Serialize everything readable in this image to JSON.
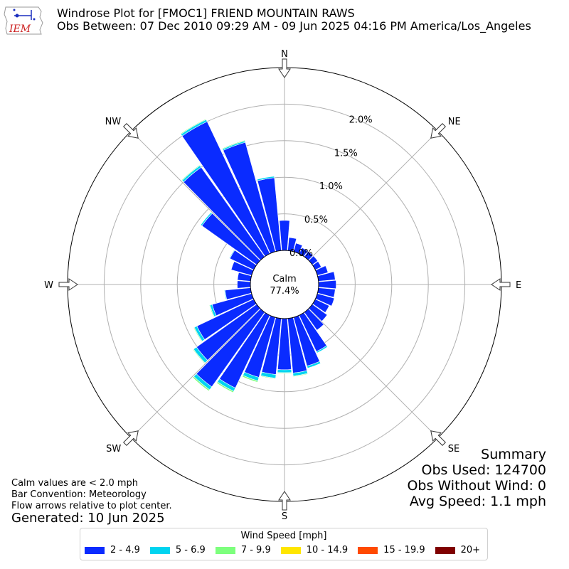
{
  "header": {
    "title": "Windrose Plot for [FMOC1] FRIEND MOUNTAIN RAWS",
    "subtitle": "Obs Between: 07 Dec 2010 09:29 AM - 09 Jun 2025 04:16 PM America/Los_Angeles",
    "logo_text": "IEM",
    "logo_icon": "iem-iowa-logo-icon"
  },
  "notes": {
    "calm_note": "Calm values are < 2.0 mph",
    "bar_convention": "Bar Convention: Meteorology",
    "flow_arrows": "Flow arrows relative to plot center.",
    "generated": "Generated: 10 Jun 2025"
  },
  "summary": {
    "heading": "Summary",
    "obs_used": "Obs Used: 124700",
    "obs_without_wind": "Obs Without Wind: 0",
    "avg_speed": "Avg Speed: 1.1 mph"
  },
  "legend": {
    "title": "Wind Speed [mph]",
    "items": [
      {
        "label": "2 - 4.9",
        "color": "#0a2bff"
      },
      {
        "label": "5 - 6.9",
        "color": "#00d4f0"
      },
      {
        "label": "7 - 9.9",
        "color": "#7dff7d"
      },
      {
        "label": "10 - 14.9",
        "color": "#ffe600"
      },
      {
        "label": "15 - 19.9",
        "color": "#ff4a00"
      },
      {
        "label": "20+",
        "color": "#800000"
      }
    ]
  },
  "chart_data": {
    "type": "windrose",
    "calm_label": "Calm",
    "calm_value": "77.4%",
    "compass_labels": [
      "N",
      "NE",
      "E",
      "SE",
      "S",
      "SW",
      "W",
      "NW"
    ],
    "r_ticks": [
      0.0,
      0.5,
      1.0,
      1.5,
      2.0
    ],
    "r_tick_labels": [
      "0.0%",
      "0.5%",
      "1.0%",
      "1.5%",
      "2.0%"
    ],
    "r_max": 2.5,
    "direction_bin_width_deg": 10,
    "directions_deg": [
      0,
      10,
      20,
      30,
      40,
      50,
      60,
      70,
      80,
      90,
      100,
      110,
      120,
      130,
      140,
      150,
      160,
      170,
      180,
      190,
      200,
      210,
      220,
      230,
      240,
      250,
      260,
      270,
      280,
      290,
      300,
      310,
      320,
      330,
      340,
      350
    ],
    "series": [
      {
        "name": "2 - 4.9",
        "color": "#0a2bff",
        "values": [
          0.41,
          0.18,
          0.12,
          0.09,
          0.09,
          0.09,
          0.09,
          0.15,
          0.23,
          0.24,
          0.23,
          0.24,
          0.21,
          0.25,
          0.3,
          0.55,
          0.69,
          0.75,
          0.7,
          0.77,
          0.85,
          1.1,
          1.25,
          1.01,
          0.86,
          0.56,
          0.35,
          0.18,
          0.18,
          0.29,
          0.36,
          0.92,
          1.5,
          2.0,
          1.55,
          1.0
        ]
      },
      {
        "name": "5 - 6.9",
        "color": "#00d4f0",
        "values": [
          0.0,
          0.0,
          0.0,
          0.0,
          0.0,
          0.0,
          0.0,
          0.0,
          0.0,
          0.0,
          0.0,
          0.0,
          0.0,
          0.0,
          0.0,
          0.02,
          0.03,
          0.04,
          0.04,
          0.05,
          0.05,
          0.05,
          0.05,
          0.05,
          0.04,
          0.03,
          0.01,
          0.0,
          0.0,
          0.0,
          0.01,
          0.02,
          0.03,
          0.03,
          0.02,
          0.02
        ]
      },
      {
        "name": "7 - 9.9",
        "color": "#7dff7d",
        "values": [
          0.0,
          0.0,
          0.0,
          0.0,
          0.0,
          0.0,
          0.0,
          0.0,
          0.0,
          0.0,
          0.0,
          0.0,
          0.0,
          0.0,
          0.0,
          0.0,
          0.0,
          0.01,
          0.01,
          0.01,
          0.02,
          0.02,
          0.02,
          0.01,
          0.01,
          0.01,
          0.0,
          0.0,
          0.0,
          0.0,
          0.0,
          0.0,
          0.01,
          0.01,
          0.01,
          0.0
        ]
      },
      {
        "name": "10 - 14.9",
        "color": "#ffe600",
        "values": [
          0,
          0,
          0,
          0,
          0,
          0,
          0,
          0,
          0,
          0,
          0,
          0,
          0,
          0,
          0,
          0,
          0,
          0,
          0,
          0,
          0,
          0,
          0,
          0,
          0,
          0,
          0,
          0,
          0,
          0,
          0,
          0,
          0,
          0,
          0,
          0
        ]
      },
      {
        "name": "15 - 19.9",
        "color": "#ff4a00",
        "values": [
          0,
          0,
          0,
          0,
          0,
          0,
          0,
          0,
          0,
          0,
          0,
          0,
          0,
          0,
          0,
          0,
          0,
          0,
          0,
          0,
          0,
          0,
          0,
          0,
          0,
          0,
          0,
          0,
          0,
          0,
          0,
          0,
          0,
          0,
          0,
          0
        ]
      },
      {
        "name": "20+",
        "color": "#800000",
        "values": [
          0,
          0,
          0,
          0,
          0,
          0,
          0,
          0,
          0,
          0,
          0,
          0,
          0,
          0,
          0,
          0,
          0,
          0,
          0,
          0,
          0,
          0,
          0,
          0,
          0,
          0,
          0,
          0,
          0,
          0,
          0,
          0,
          0,
          0,
          0,
          0
        ]
      }
    ],
    "grid": true
  }
}
